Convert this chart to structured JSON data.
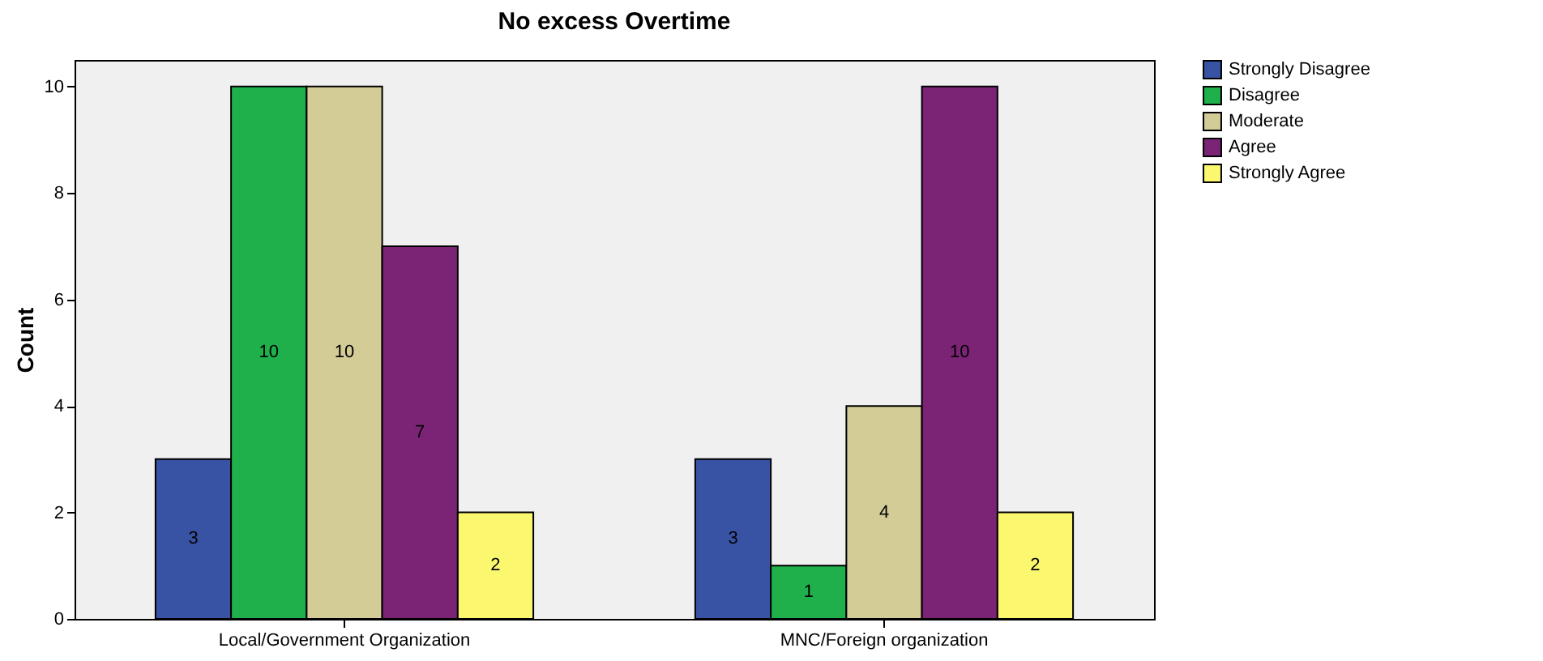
{
  "chart_data": {
    "type": "bar",
    "title": "No excess Overtime",
    "ylabel": "Count",
    "categories": [
      "Local/Government Organization",
      "MNC/Foreign organization"
    ],
    "series": [
      {
        "name": "Strongly Disagree",
        "color": "#3953a4",
        "values": [
          3,
          3
        ]
      },
      {
        "name": "Disagree",
        "color": "#20b04b",
        "values": [
          10,
          1
        ]
      },
      {
        "name": "Moderate",
        "color": "#d3cc96",
        "values": [
          10,
          4
        ]
      },
      {
        "name": "Agree",
        "color": "#7b2476",
        "values": [
          7,
          10
        ]
      },
      {
        "name": "Strongly Agree",
        "color": "#fbf870",
        "values": [
          2,
          2
        ]
      }
    ],
    "ylim": [
      0,
      10.5
    ],
    "yticks": [
      0,
      2,
      4,
      6,
      8,
      10
    ],
    "data_labels": true,
    "legend": "top right",
    "grid": false
  }
}
